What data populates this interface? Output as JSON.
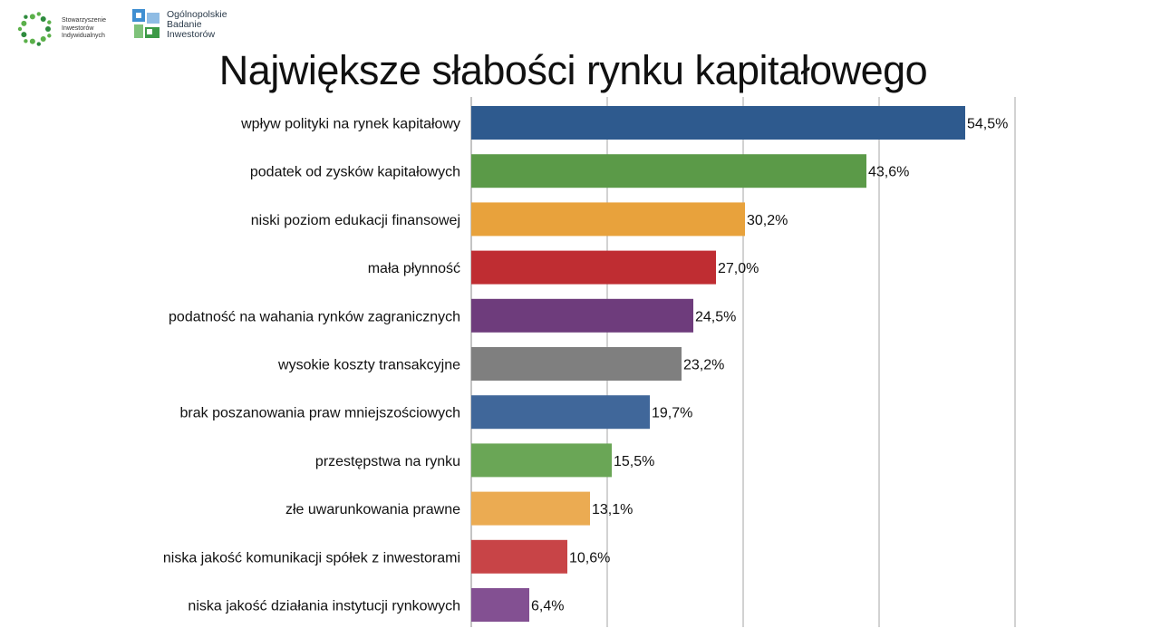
{
  "logos": {
    "sii": {
      "lines": [
        "Stowarzyszenie",
        "Inwestorów",
        "Indywidualnych"
      ]
    },
    "obi": {
      "lines": [
        "Ogólnopolskie",
        "Badanie",
        "Inwestorów"
      ]
    }
  },
  "chart_data": {
    "type": "bar",
    "orientation": "horizontal",
    "title": "Największe słabości rynku kapitałowego",
    "categories": [
      "wpływ polityki na rynek kapitałowy",
      "podatek od zysków kapitałowych",
      "niski poziom edukacji finansowej",
      "mała płynność",
      "podatność na wahania rynków zagranicznych",
      "wysokie koszty transakcyjne",
      "brak poszanowania praw mniejszościowych",
      "przestępstwa na rynku",
      "złe uwarunkowania prawne",
      "niska jakość komunikacji spółek z inwestorami",
      "niska jakość działania instytucji rynkowych"
    ],
    "values": [
      54.5,
      43.6,
      30.2,
      27.0,
      24.5,
      23.2,
      19.7,
      15.5,
      13.1,
      10.6,
      6.4
    ],
    "value_labels": [
      "54,5%",
      "43,6%",
      "30,2%",
      "27,0%",
      "24,5%",
      "23,2%",
      "19,7%",
      "15,5%",
      "13,1%",
      "10,6%",
      "6,4%"
    ],
    "colors": [
      "#2e5a8e",
      "#5b9a48",
      "#e8a23c",
      "#bf2d32",
      "#6e3c7c",
      "#7f7f7f",
      "#40679a",
      "#6aa656",
      "#ebab52",
      "#c84447",
      "#835092"
    ],
    "xlim": [
      0,
      60
    ],
    "gridlines": true,
    "gridline_step": 15,
    "legend": "none"
  }
}
